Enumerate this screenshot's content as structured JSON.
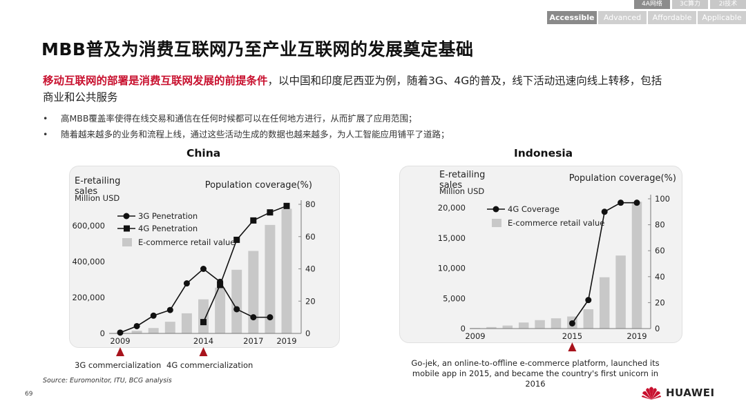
{
  "nav": {
    "top_tabs": [
      "4A网络",
      "3C算力",
      "2I技术"
    ],
    "bottom_tabs": [
      "Accessible",
      "Advanced",
      "Affordable",
      "Applicable"
    ]
  },
  "title": "MBB普及为消费互联网乃至产业互联网的发展奠定基础",
  "intro": {
    "highlight": "移动互联网的部署是消费互联网发展的前提条件",
    "rest": "，以中国和印度尼西亚为例，随着3G、4G的普及，线下活动迅速向线上转移，包括商业和公共服务"
  },
  "bullets": [
    "高MBB覆盖率使得在线交易和通信在任何时候都可以在任何地方进行，从而扩展了应用范围；",
    "随着越来越多的业务和流程上线，通过这些活动生成的数据也越来越多，为人工智能应用铺平了道路；"
  ],
  "colors": {
    "accent": "#c8102e",
    "bar": "#c8c8c8",
    "marker": "#111111",
    "panel": "#f2f2f2",
    "triangle": "#a8131c"
  },
  "chart_data": [
    {
      "type": "bar+line",
      "title": "China",
      "left_axis_label_1": "E-retailing",
      "left_axis_label_2": "sales",
      "left_axis_unit": "Million USD",
      "right_axis_label": "Population coverage(%)",
      "x_tick_labels": [
        "2009",
        "2014",
        "2017",
        "2019"
      ],
      "left_ticks": [
        "0",
        "200,000",
        "400,000",
        "600,000"
      ],
      "right_ticks": [
        "0",
        "20",
        "40",
        "60",
        "80"
      ],
      "ylim_left": [
        0,
        720000
      ],
      "ylim_right": [
        0,
        80
      ],
      "years": [
        2009,
        2010,
        2011,
        2012,
        2013,
        2014,
        2015,
        2016,
        2017,
        2018,
        2019
      ],
      "series": [
        {
          "name": "3G Penetration",
          "marker": "circle",
          "values": [
            0.5,
            4.5,
            11,
            14.5,
            31,
            40,
            32,
            15,
            10,
            10,
            null
          ]
        },
        {
          "name": "4G Penetration",
          "marker": "square",
          "values": [
            null,
            null,
            null,
            null,
            null,
            7,
            30,
            58,
            70,
            75,
            79
          ]
        },
        {
          "name": "E-commerce retail value",
          "type": "bar",
          "values": [
            3000,
            15000,
            30000,
            65000,
            112000,
            190000,
            255000,
            355000,
            460000,
            605000,
            695000
          ]
        }
      ],
      "annotations": [
        {
          "year": 2009,
          "text": "3G commercialization"
        },
        {
          "year": 2014,
          "text": "4G commercialization"
        }
      ]
    },
    {
      "type": "bar+line",
      "title": "Indonesia",
      "left_axis_label_1": "E-retailing",
      "left_axis_label_2": "sales",
      "left_axis_unit": "Million USD",
      "right_axis_label": "Population coverage(%)",
      "x_tick_labels": [
        "2009",
        "2015",
        "2019"
      ],
      "left_ticks": [
        "0",
        "5,000",
        "10,000",
        "15,000",
        "20,000"
      ],
      "right_ticks": [
        "0",
        "20",
        "40",
        "60",
        "80",
        "100"
      ],
      "ylim_left": [
        0,
        21500
      ],
      "ylim_right": [
        0,
        100
      ],
      "years": [
        2009,
        2010,
        2011,
        2012,
        2013,
        2014,
        2015,
        2016,
        2017,
        2018,
        2019
      ],
      "series": [
        {
          "name": "4G Coverage",
          "marker": "circle",
          "values": [
            null,
            null,
            null,
            null,
            null,
            null,
            4,
            22,
            90,
            97,
            97
          ]
        },
        {
          "name": "E-commerce retail value",
          "type": "bar",
          "values": [
            100,
            250,
            500,
            1000,
            1400,
            1700,
            2000,
            3200,
            8500,
            12100,
            21000
          ]
        }
      ],
      "annotations": [
        {
          "year": 2015,
          "text": ""
        }
      ],
      "note": "Go-jek, an online-to-offline e-commerce platform, launched its mobile app in 2015, and became the country's first unicorn in 2016"
    }
  ],
  "source": "Source: Euromonitor, ITU, BCG analysis",
  "page_number": "69",
  "brand": "HUAWEI"
}
